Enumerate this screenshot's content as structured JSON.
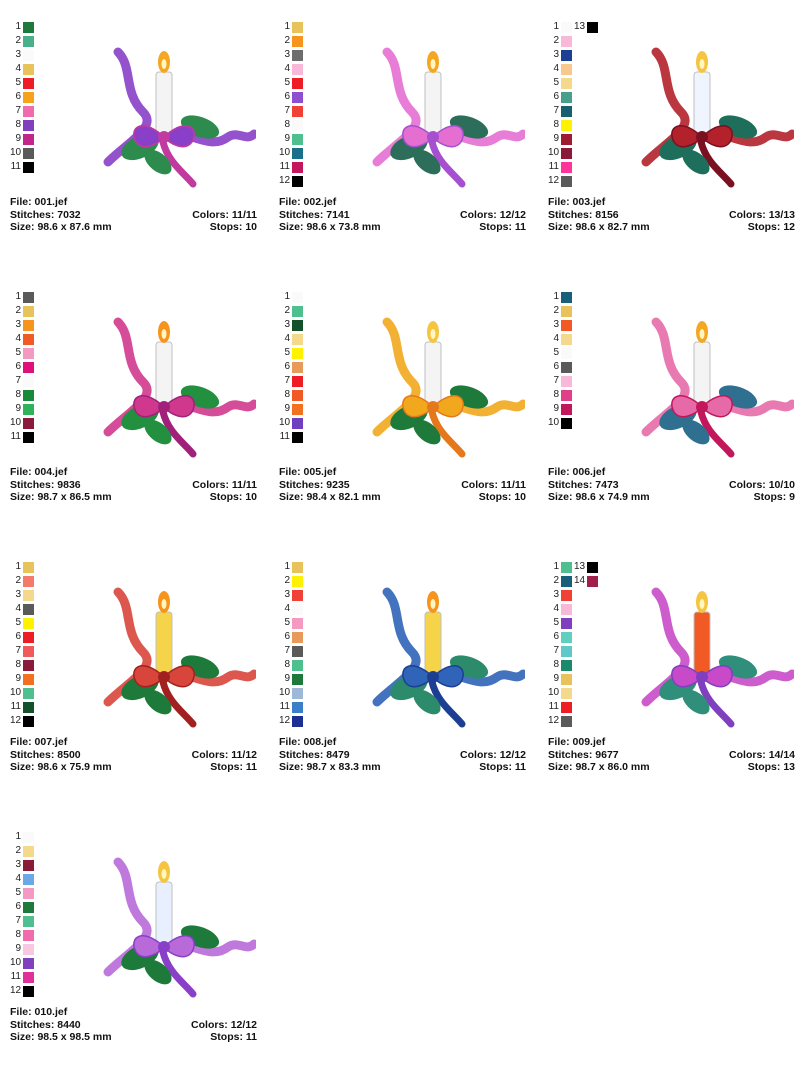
{
  "labels": {
    "file": "File:",
    "stitches": "Stitches:",
    "size": "Size:",
    "colors": "Colors:",
    "stops": "Stops:"
  },
  "designs": [
    {
      "file": "001.jef",
      "stitches": "7032",
      "size": "98.6 x 87.6 mm",
      "colors": "11/11",
      "stops": "10",
      "palette": [
        {
          "n": "1",
          "c": "#1e7a3a"
        },
        {
          "n": "2",
          "c": "#48b08a"
        },
        {
          "n": "3",
          "c": "#ffffff"
        },
        {
          "n": "4",
          "c": "#e8c25a"
        },
        {
          "n": "5",
          "c": "#ee1c24"
        },
        {
          "n": "6",
          "c": "#f7a21b"
        },
        {
          "n": "7",
          "c": "#f06cac"
        },
        {
          "n": "8",
          "c": "#7f3fbf"
        },
        {
          "n": "9",
          "c": "#c2268a"
        },
        {
          "n": "10",
          "c": "#5a5a5a"
        },
        {
          "n": "11",
          "c": "#000000"
        }
      ],
      "art": {
        "ribbon": "#8a3fc8",
        "accent": "#c03aa0",
        "candle": "#f4f4f4",
        "flame": "#f5a623",
        "leaf": "#2e8b4e"
      }
    },
    {
      "file": "002.jef",
      "stitches": "7141",
      "size": "98.6 x 73.8 mm",
      "colors": "12/12",
      "stops": "11",
      "palette": [
        {
          "n": "1",
          "c": "#e8c25a"
        },
        {
          "n": "2",
          "c": "#f7941d"
        },
        {
          "n": "3",
          "c": "#6d6d6d"
        },
        {
          "n": "4",
          "c": "#f8b8d8"
        },
        {
          "n": "5",
          "c": "#ee1c24"
        },
        {
          "n": "6",
          "c": "#8d4fd0"
        },
        {
          "n": "7",
          "c": "#ef4136"
        },
        {
          "n": "8",
          "c": "#ffffff"
        },
        {
          "n": "9",
          "c": "#4fbf8f"
        },
        {
          "n": "10",
          "c": "#1a6f8a"
        },
        {
          "n": "11",
          "c": "#c2185b"
        },
        {
          "n": "12",
          "c": "#000000"
        }
      ],
      "art": {
        "ribbon": "#e46fd1",
        "accent": "#a64fd0",
        "candle": "#f4f4f4",
        "flame": "#f5a623",
        "leaf": "#2c6e5a"
      }
    },
    {
      "file": "003.jef",
      "stitches": "8156",
      "size": "98.6 x 82.7 mm",
      "colors": "13/13",
      "stops": "12",
      "palette": [
        {
          "n": "1",
          "c": "#ffffff"
        },
        {
          "n": "2",
          "c": "#f8b8d8"
        },
        {
          "n": "3",
          "c": "#1c3f94"
        },
        {
          "n": "4",
          "c": "#f7c98d"
        },
        {
          "n": "5",
          "c": "#f4d98c"
        },
        {
          "n": "6",
          "c": "#49a08a"
        },
        {
          "n": "7",
          "c": "#1a5f6f"
        },
        {
          "n": "8",
          "c": "#fff200"
        },
        {
          "n": "9",
          "c": "#9e1b32"
        },
        {
          "n": "10",
          "c": "#8b1a3a"
        },
        {
          "n": "11",
          "c": "#ff3399"
        },
        {
          "n": "12",
          "c": "#5a5a5a"
        },
        {
          "n": "13",
          "c": "#000000"
        }
      ],
      "art": {
        "ribbon": "#b3212b",
        "accent": "#7a1020",
        "candle": "#f0f4ff",
        "flame": "#f5c542",
        "leaf": "#1d6e5a"
      }
    },
    {
      "file": "004.jef",
      "stitches": "9836",
      "size": "98.7 x 86.5 mm",
      "colors": "11/11",
      "stops": "10",
      "palette": [
        {
          "n": "1",
          "c": "#5a5a5a"
        },
        {
          "n": "2",
          "c": "#e8c25a"
        },
        {
          "n": "3",
          "c": "#f7941d"
        },
        {
          "n": "4",
          "c": "#f15a24"
        },
        {
          "n": "5",
          "c": "#f49ac2"
        },
        {
          "n": "6",
          "c": "#e0107a"
        },
        {
          "n": "7",
          "c": "#ffffff"
        },
        {
          "n": "8",
          "c": "#1a8a3a"
        },
        {
          "n": "9",
          "c": "#2eb35a"
        },
        {
          "n": "10",
          "c": "#8b1a3a"
        },
        {
          "n": "11",
          "c": "#000000"
        }
      ],
      "art": {
        "ribbon": "#d0388e",
        "accent": "#a0207a",
        "candle": "#f4f4f4",
        "flame": "#f7941d",
        "leaf": "#23903f"
      }
    },
    {
      "file": "005.jef",
      "stitches": "9235",
      "size": "98.4 x 82.1 mm",
      "colors": "11/11",
      "stops": "10",
      "palette": [
        {
          "n": "1",
          "c": "#ffffff"
        },
        {
          "n": "2",
          "c": "#4fbf8f"
        },
        {
          "n": "3",
          "c": "#12512a"
        },
        {
          "n": "4",
          "c": "#f4d98c"
        },
        {
          "n": "5",
          "c": "#fff200"
        },
        {
          "n": "6",
          "c": "#e89a5a"
        },
        {
          "n": "7",
          "c": "#ee1c24"
        },
        {
          "n": "8",
          "c": "#f15a24"
        },
        {
          "n": "9",
          "c": "#f37021"
        },
        {
          "n": "10",
          "c": "#6f3fbf"
        },
        {
          "n": "11",
          "c": "#000000"
        }
      ],
      "art": {
        "ribbon": "#f2a81d",
        "accent": "#e5781a",
        "candle": "#f4f4f4",
        "flame": "#f5c542",
        "leaf": "#1d7a3a"
      }
    },
    {
      "file": "006.jef",
      "stitches": "7473",
      "size": "98.6 x 74.9 mm",
      "colors": "10/10",
      "stops": "9",
      "palette": [
        {
          "n": "1",
          "c": "#1a5f7a"
        },
        {
          "n": "2",
          "c": "#e8c25a"
        },
        {
          "n": "3",
          "c": "#f15a24"
        },
        {
          "n": "4",
          "c": "#f4d98c"
        },
        {
          "n": "5",
          "c": "#ffffff"
        },
        {
          "n": "6",
          "c": "#5a5a5a"
        },
        {
          "n": "7",
          "c": "#f8b8d8"
        },
        {
          "n": "8",
          "c": "#e0408a"
        },
        {
          "n": "9",
          "c": "#c2185b"
        },
        {
          "n": "10",
          "c": "#000000"
        }
      ],
      "art": {
        "ribbon": "#e66aa8",
        "accent": "#c2185b",
        "candle": "#f4f4f4",
        "flame": "#f5a623",
        "leaf": "#2f6f8f"
      }
    },
    {
      "file": "007.jef",
      "stitches": "8500",
      "size": "98.6 x 75.9 mm",
      "colors": "11/12",
      "stops": "11",
      "palette": [
        {
          "n": "1",
          "c": "#e8c25a"
        },
        {
          "n": "2",
          "c": "#f47a6a"
        },
        {
          "n": "3",
          "c": "#f4d98c"
        },
        {
          "n": "4",
          "c": "#5a5a5a"
        },
        {
          "n": "5",
          "c": "#fff200"
        },
        {
          "n": "6",
          "c": "#ee1c24"
        },
        {
          "n": "7",
          "c": "#f15a5a"
        },
        {
          "n": "8",
          "c": "#8b1a3a"
        },
        {
          "n": "9",
          "c": "#f37021"
        },
        {
          "n": "10",
          "c": "#4fbf8f"
        },
        {
          "n": "11",
          "c": "#12512a"
        },
        {
          "n": "12",
          "c": "#000000"
        }
      ],
      "art": {
        "ribbon": "#d8453a",
        "accent": "#a32020",
        "candle": "#f5d44a",
        "flame": "#f7941d",
        "leaf": "#1d7a3a"
      }
    },
    {
      "file": "008.jef",
      "stitches": "8479",
      "size": "98.7 x 83.3 mm",
      "colors": "12/12",
      "stops": "11",
      "palette": [
        {
          "n": "1",
          "c": "#e8c25a"
        },
        {
          "n": "2",
          "c": "#fff200"
        },
        {
          "n": "3",
          "c": "#ef4136"
        },
        {
          "n": "4",
          "c": "#ffffff"
        },
        {
          "n": "5",
          "c": "#f49ac2"
        },
        {
          "n": "6",
          "c": "#e89a5a"
        },
        {
          "n": "7",
          "c": "#5a5a5a"
        },
        {
          "n": "8",
          "c": "#4fbf8f"
        },
        {
          "n": "9",
          "c": "#1d7a3a"
        },
        {
          "n": "10",
          "c": "#9fb8d8"
        },
        {
          "n": "11",
          "c": "#3a7fc8"
        },
        {
          "n": "12",
          "c": "#1c2f94"
        }
      ],
      "art": {
        "ribbon": "#2f64b8",
        "accent": "#1c3f94",
        "candle": "#f5d44a",
        "flame": "#f7941d",
        "leaf": "#2c8b6a"
      }
    },
    {
      "file": "009.jef",
      "stitches": "9677",
      "size": "98.7 x 86.0 mm",
      "colors": "14/14",
      "stops": "13",
      "palette": [
        {
          "n": "1",
          "c": "#4fbf8f"
        },
        {
          "n": "2",
          "c": "#1a5f7a"
        },
        {
          "n": "3",
          "c": "#ef4136"
        },
        {
          "n": "4",
          "c": "#f8b8d8"
        },
        {
          "n": "5",
          "c": "#7f3fbf"
        },
        {
          "n": "6",
          "c": "#5fd0c0"
        },
        {
          "n": "7",
          "c": "#5fc8c8"
        },
        {
          "n": "8",
          "c": "#1a8a6a"
        },
        {
          "n": "9",
          "c": "#e8c25a"
        },
        {
          "n": "10",
          "c": "#f4d98c"
        },
        {
          "n": "11",
          "c": "#ee1c24"
        },
        {
          "n": "12",
          "c": "#5a5a5a"
        },
        {
          "n": "13",
          "c": "#000000"
        },
        {
          "n": "14",
          "c": "#a0204a"
        }
      ],
      "art": {
        "ribbon": "#c84ac8",
        "accent": "#7f3fbf",
        "candle": "#f15a24",
        "flame": "#f5c542",
        "leaf": "#2f8f7a"
      }
    },
    {
      "file": "010.jef",
      "stitches": "8440",
      "size": "98.5 x 98.5 mm",
      "colors": "12/12",
      "stops": "11",
      "palette": [
        {
          "n": "1",
          "c": "#ffffff"
        },
        {
          "n": "2",
          "c": "#f4d98c"
        },
        {
          "n": "3",
          "c": "#8b1a3a"
        },
        {
          "n": "4",
          "c": "#6aa8e8"
        },
        {
          "n": "5",
          "c": "#f49ac2"
        },
        {
          "n": "6",
          "c": "#1d7a3a"
        },
        {
          "n": "7",
          "c": "#4fbf8f"
        },
        {
          "n": "8",
          "c": "#f06cac"
        },
        {
          "n": "9",
          "c": "#f8c8e0"
        },
        {
          "n": "10",
          "c": "#7f3fbf"
        },
        {
          "n": "11",
          "c": "#e0309a"
        },
        {
          "n": "12",
          "c": "#000000"
        }
      ],
      "art": {
        "ribbon": "#b86ad8",
        "accent": "#8a3fc8",
        "candle": "#e8f0ff",
        "flame": "#f5c542",
        "leaf": "#1d7a3a"
      }
    }
  ]
}
